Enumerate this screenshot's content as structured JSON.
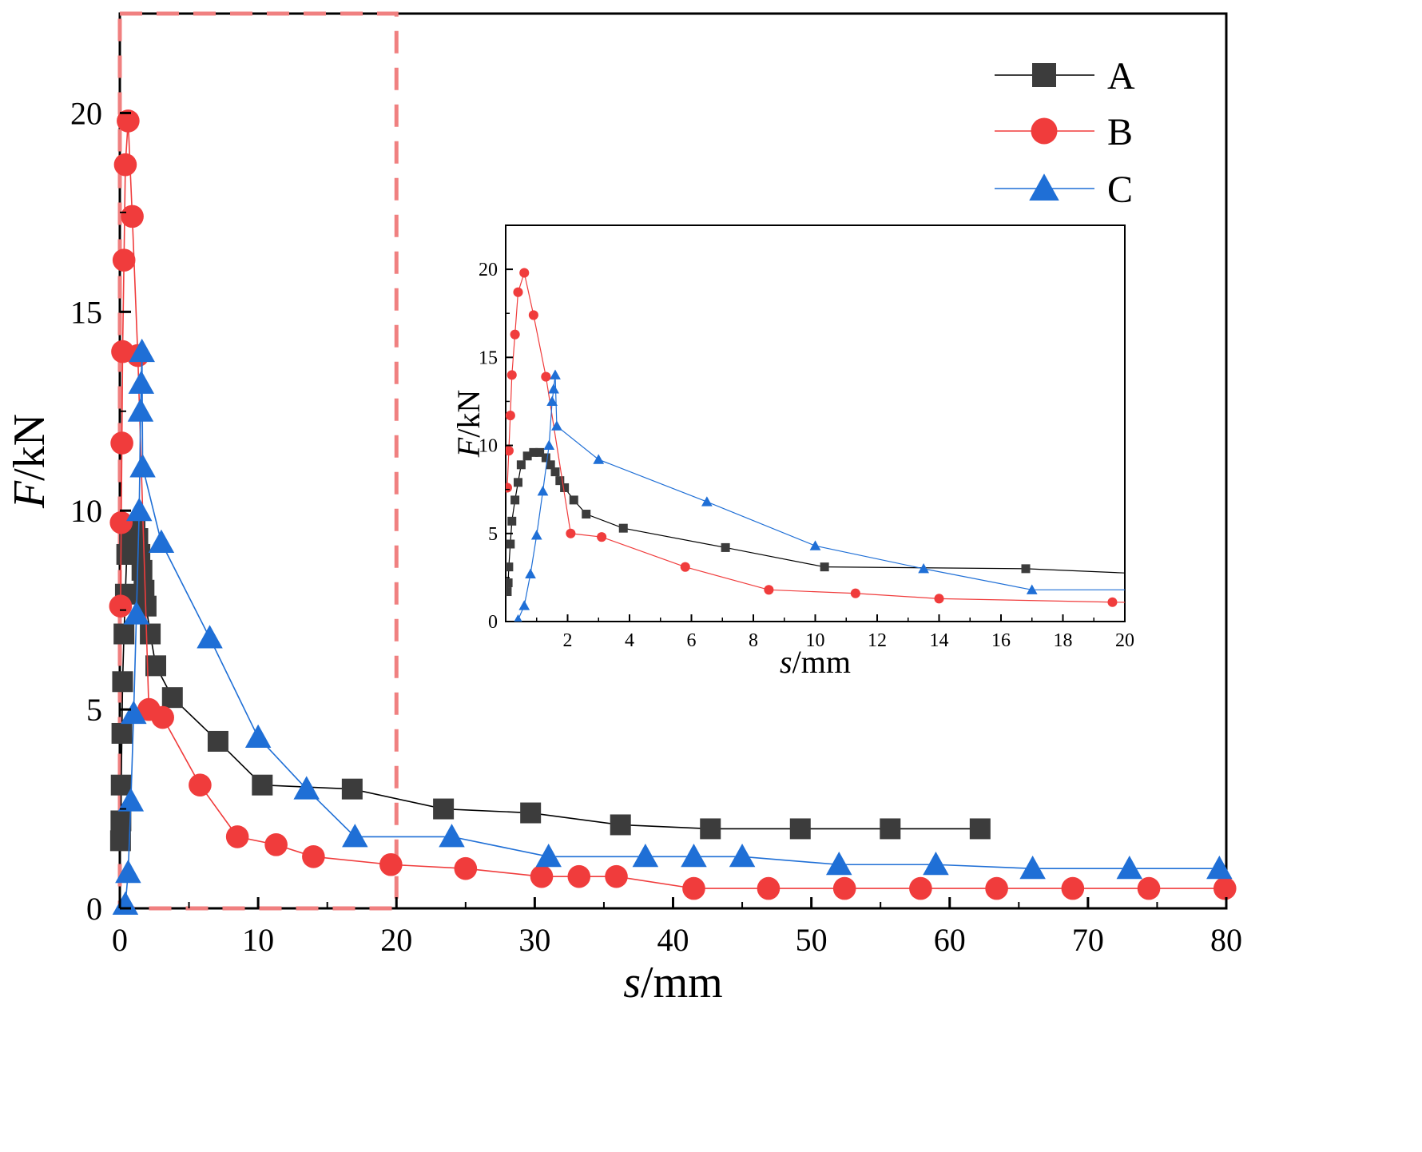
{
  "chart_data": {
    "type": "line",
    "xlabel": {
      "italic": "s",
      "rest": "/mm"
    },
    "ylabel": {
      "italic": "F",
      "rest": "/kN"
    },
    "xlim": [
      0,
      80
    ],
    "ylim": [
      0,
      22.5
    ],
    "xticks": [
      "0",
      "10",
      "20",
      "30",
      "40",
      "50",
      "60",
      "70",
      "80"
    ],
    "yticks": [
      "0",
      "5",
      "10",
      "15",
      "20"
    ],
    "highlight_box": {
      "x_range": [
        0,
        20
      ],
      "y_range": [
        0,
        22.5
      ],
      "color": "#f08080"
    },
    "legend": {
      "placement": "top-right",
      "entries": [
        "A",
        "B",
        "C"
      ]
    },
    "series": [
      {
        "name": "A",
        "color": "#3c3c3c",
        "line_color": "#000000",
        "marker": "square",
        "x": [
          0.05,
          0.08,
          0.1,
          0.15,
          0.2,
          0.3,
          0.4,
          0.5,
          0.7,
          0.9,
          1.1,
          1.3,
          1.45,
          1.6,
          1.75,
          1.9,
          2.2,
          2.6,
          3.8,
          7.1,
          10.3,
          16.8,
          23.4,
          29.7,
          36.2,
          42.7,
          49.2,
          55.7,
          62.2
        ],
        "y": [
          1.7,
          2.2,
          3.1,
          4.4,
          5.7,
          6.9,
          7.9,
          8.9,
          9.4,
          9.6,
          9.6,
          9.3,
          8.9,
          8.5,
          8.0,
          7.6,
          6.9,
          6.1,
          5.3,
          4.2,
          3.1,
          3.0,
          2.5,
          2.4,
          2.1,
          2.0,
          2.0,
          2.0,
          2.0
        ]
      },
      {
        "name": "B",
        "color": "#f03c3c",
        "line_color": "#f03c3c",
        "marker": "circle",
        "x": [
          0.05,
          0.1,
          0.15,
          0.2,
          0.3,
          0.4,
          0.6,
          0.9,
          1.3,
          2.1,
          3.1,
          5.8,
          8.5,
          11.3,
          14.0,
          19.6,
          25.0,
          30.5,
          33.2,
          35.9,
          41.5,
          46.9,
          52.4,
          57.9,
          63.4,
          68.9,
          74.4,
          79.9
        ],
        "y": [
          7.6,
          9.7,
          11.7,
          14.0,
          16.3,
          18.7,
          19.8,
          17.4,
          13.9,
          5.0,
          4.8,
          3.1,
          1.8,
          1.6,
          1.3,
          1.1,
          1.0,
          0.8,
          0.8,
          0.8,
          0.5,
          0.5,
          0.5,
          0.5,
          0.5,
          0.5,
          0.5,
          0.5
        ]
      },
      {
        "name": "C",
        "color": "#1f6fd6",
        "line_color": "#1f6fd6",
        "marker": "triangle",
        "x": [
          0.4,
          0.6,
          0.8,
          1.0,
          1.2,
          1.4,
          1.5,
          1.55,
          1.6,
          1.65,
          3.0,
          6.5,
          10.0,
          13.5,
          17.0,
          24.0,
          31.0,
          38.0,
          41.5,
          45.0,
          52.0,
          59.0,
          66.0,
          73.0,
          79.5
        ],
        "y": [
          0.1,
          0.9,
          2.7,
          4.9,
          7.4,
          10.0,
          12.5,
          13.2,
          14.0,
          11.1,
          9.2,
          6.8,
          4.3,
          3.0,
          1.8,
          1.8,
          1.3,
          1.3,
          1.3,
          1.3,
          1.1,
          1.1,
          1.0,
          1.0,
          1.0
        ]
      }
    ],
    "inset": {
      "xlabel": {
        "italic": "s",
        "rest": "/mm"
      },
      "ylabel": {
        "italic": "F",
        "rest": "/kN"
      },
      "xlim": [
        0,
        20
      ],
      "ylim": [
        0,
        22.5
      ],
      "xticks": [
        "2",
        "4",
        "6",
        "8",
        "10",
        "12",
        "14",
        "16",
        "18",
        "20"
      ],
      "yticks": [
        "0",
        "5",
        "10",
        "15",
        "20"
      ]
    }
  }
}
